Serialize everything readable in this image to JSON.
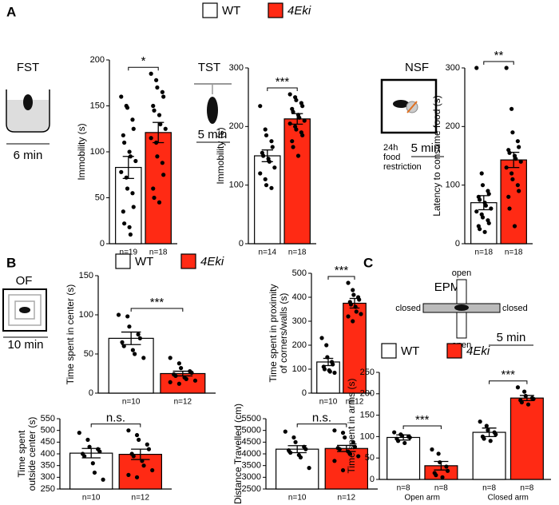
{
  "panels": [
    "A",
    "B",
    "C"
  ],
  "labels": {
    "fst": "FST",
    "fst_time": "6 min",
    "tst": "TST",
    "tst_time": "5 min",
    "nsf": "NSF",
    "nsf_time": "5 min",
    "nsf_note": [
      "24h",
      "food",
      "restriction"
    ],
    "of": "OF",
    "of_time": "10 min",
    "epm": "EPM",
    "epm_time": "5 min",
    "epm_arms": [
      "open",
      "closed",
      "closed",
      "open"
    ]
  },
  "chart_data": [
    {
      "type": "bar",
      "ylabel": [
        "Immobility (s)"
      ],
      "ylim": [
        0,
        200
      ],
      "yticks": [
        0,
        50,
        100,
        150,
        200
      ],
      "significance": [
        "*"
      ],
      "series": [
        {
          "name": "WT",
          "color": "#ffffff",
          "values": [
            83
          ],
          "errors": [
            12
          ],
          "n_labels": [
            "n=19"
          ],
          "points": [
            [
              160,
              150,
              148,
              135,
              125,
              118,
              110,
              100,
              95,
              90,
              78,
              72,
              60,
              55,
              40,
              35,
              22,
              18,
              10
            ]
          ]
        },
        {
          "name": "4Eki",
          "color": "#ff2a14",
          "values": [
            121
          ],
          "errors": [
            11
          ],
          "n_labels": [
            "n=18"
          ],
          "points": [
            [
              185,
              178,
              170,
              165,
              160,
              150,
              145,
              140,
              130,
              125,
              115,
              110,
              95,
              88,
              75,
              60,
              50,
              45
            ]
          ]
        }
      ]
    },
    {
      "type": "bar",
      "ylabel": [
        "Immobility (s)"
      ],
      "ylim": [
        0,
        300
      ],
      "yticks": [
        0,
        100,
        200,
        300
      ],
      "significance": [
        "***"
      ],
      "series": [
        {
          "name": "WT",
          "color": "#ffffff",
          "values": [
            150
          ],
          "errors": [
            10
          ],
          "n_labels": [
            "n=14"
          ],
          "points": [
            [
              235,
              195,
              185,
              175,
              165,
              155,
              150,
              145,
              140,
              130,
              120,
              110,
              100,
              95
            ]
          ]
        },
        {
          "name": "4Eki",
          "color": "#ff2a14",
          "values": [
            213
          ],
          "errors": [
            9
          ],
          "n_labels": [
            "n=18"
          ],
          "points": [
            [
              255,
              250,
              245,
              240,
              235,
              230,
              225,
              220,
              215,
              210,
              205,
              200,
              195,
              190,
              185,
              175,
              165,
              150
            ]
          ]
        }
      ]
    },
    {
      "type": "bar",
      "ylabel": [
        "Latency to consume food (s)"
      ],
      "ylim": [
        0,
        300
      ],
      "yticks": [
        0,
        100,
        200,
        300
      ],
      "significance": [
        "**"
      ],
      "series": [
        {
          "name": "WT",
          "color": "#ffffff",
          "values": [
            70
          ],
          "errors": [
            12
          ],
          "n_labels": [
            "n=18"
          ],
          "points": [
            [
              300,
              120,
              100,
              90,
              85,
              80,
              75,
              70,
              65,
              60,
              55,
              50,
              45,
              40,
              35,
              30,
              25,
              20
            ]
          ]
        },
        {
          "name": "4Eki",
          "color": "#ff2a14",
          "values": [
            143
          ],
          "errors": [
            13
          ],
          "n_labels": [
            "n=18"
          ],
          "points": [
            [
              300,
              230,
              190,
              175,
              165,
              160,
              155,
              150,
              145,
              140,
              130,
              120,
              110,
              100,
              90,
              80,
              60,
              30
            ]
          ]
        }
      ]
    },
    {
      "type": "bar",
      "ylabel": [
        "Time spent in center (s)"
      ],
      "ylim": [
        0,
        150
      ],
      "yticks": [
        0,
        50,
        100,
        150
      ],
      "significance": [
        "***"
      ],
      "series": [
        {
          "name": "WT",
          "color": "#ffffff",
          "values": [
            70
          ],
          "errors": [
            8
          ],
          "n_labels": [
            "n=10"
          ],
          "points": [
            [
              100,
              98,
              85,
              75,
              70,
              65,
              60,
              55,
              50,
              45
            ]
          ]
        },
        {
          "name": "4Eki",
          "color": "#ff2a14",
          "values": [
            25
          ],
          "errors": [
            3
          ],
          "n_labels": [
            "n=12"
          ],
          "points": [
            [
              45,
              38,
              32,
              28,
              26,
              24,
              22,
              20,
              18,
              16,
              14,
              12
            ]
          ]
        }
      ]
    },
    {
      "type": "bar",
      "ylabel": [
        "Time spent in proximity",
        "of corners/walls (s)"
      ],
      "ylim": [
        0,
        500
      ],
      "yticks": [
        0,
        100,
        200,
        300,
        400,
        500
      ],
      "significance": [
        "***"
      ],
      "series": [
        {
          "name": "WT",
          "color": "#ffffff",
          "values": [
            130
          ],
          "errors": [
            15
          ],
          "n_labels": [
            "n=10"
          ],
          "points": [
            [
              230,
              200,
              150,
              130,
              120,
              110,
              100,
              95,
              90,
              85
            ]
          ]
        },
        {
          "name": "4Eki",
          "color": "#ff2a14",
          "values": [
            375
          ],
          "errors": [
            20
          ],
          "n_labels": [
            "n=12"
          ],
          "points": [
            [
              460,
              430,
              410,
              400,
              390,
              380,
              370,
              360,
              340,
              330,
              320,
              300
            ]
          ]
        }
      ]
    },
    {
      "type": "bar",
      "ylabel": [
        "Time spent",
        "outside center (s)"
      ],
      "ylim": [
        250,
        550
      ],
      "yticks": [
        250,
        300,
        350,
        400,
        450,
        500,
        550
      ],
      "significance": [
        "n.s."
      ],
      "series": [
        {
          "name": "WT",
          "color": "#ffffff",
          "values": [
            403
          ],
          "errors": [
            20
          ],
          "n_labels": [
            "n=10"
          ],
          "points": [
            [
              490,
              460,
              430,
              420,
              410,
              400,
              390,
              360,
              320,
              290
            ]
          ]
        },
        {
          "name": "4Eki",
          "color": "#ff2a14",
          "values": [
            398
          ],
          "errors": [
            22
          ],
          "n_labels": [
            "n=12"
          ],
          "points": [
            [
              500,
              480,
              460,
              440,
              420,
              400,
              390,
              370,
              350,
              330,
              310,
              300
            ]
          ]
        }
      ]
    },
    {
      "type": "bar",
      "ylabel": [
        "Distance Travelled (cm)"
      ],
      "ylim": [
        2500,
        5500
      ],
      "yticks": [
        2500,
        3000,
        3500,
        4000,
        4500,
        5000,
        5500
      ],
      "significance": [
        "n.s."
      ],
      "series": [
        {
          "name": "WT",
          "color": "#ffffff",
          "values": [
            4200
          ],
          "errors": [
            150
          ],
          "n_labels": [
            "n=10"
          ],
          "points": [
            [
              4950,
              4700,
              4500,
              4300,
              4200,
              4150,
              4050,
              3950,
              3850,
              3400
            ]
          ]
        },
        {
          "name": "4Eki",
          "color": "#ff2a14",
          "values": [
            4230
          ],
          "errors": [
            130
          ],
          "n_labels": [
            "n=12"
          ],
          "points": [
            [
              5000,
              4900,
              4700,
              4500,
              4300,
              4250,
              4200,
              4100,
              4000,
              3900,
              3700,
              3300
            ]
          ]
        }
      ]
    },
    {
      "type": "bar",
      "ylabel": [
        "Time spent in arms (s)"
      ],
      "ylim": [
        0,
        250
      ],
      "yticks": [
        0,
        50,
        100,
        150,
        200,
        250
      ],
      "categories": [
        "Open arm",
        "Closed arm"
      ],
      "significance": [
        "***",
        "***"
      ],
      "series": [
        {
          "name": "WT",
          "color": "#ffffff",
          "values": [
            98,
            110
          ],
          "errors": [
            6,
            10
          ],
          "n_labels": [
            "n=8",
            "n=8"
          ],
          "points": [
            [
              110,
              105,
              102,
              100,
              98,
              95,
              90,
              85
            ],
            [
              135,
              125,
              115,
              110,
              105,
              100,
              95,
              90
            ]
          ]
        },
        {
          "name": "4Eki",
          "color": "#ff2a14",
          "values": [
            32,
            190
          ],
          "errors": [
            10,
            6
          ],
          "n_labels": [
            "n=8",
            "n=8"
          ],
          "points": [
            [
              70,
              60,
              40,
              30,
              20,
              15,
              10,
              5
            ],
            [
              215,
              205,
              195,
              190,
              188,
              185,
              180,
              175
            ]
          ]
        }
      ]
    }
  ]
}
